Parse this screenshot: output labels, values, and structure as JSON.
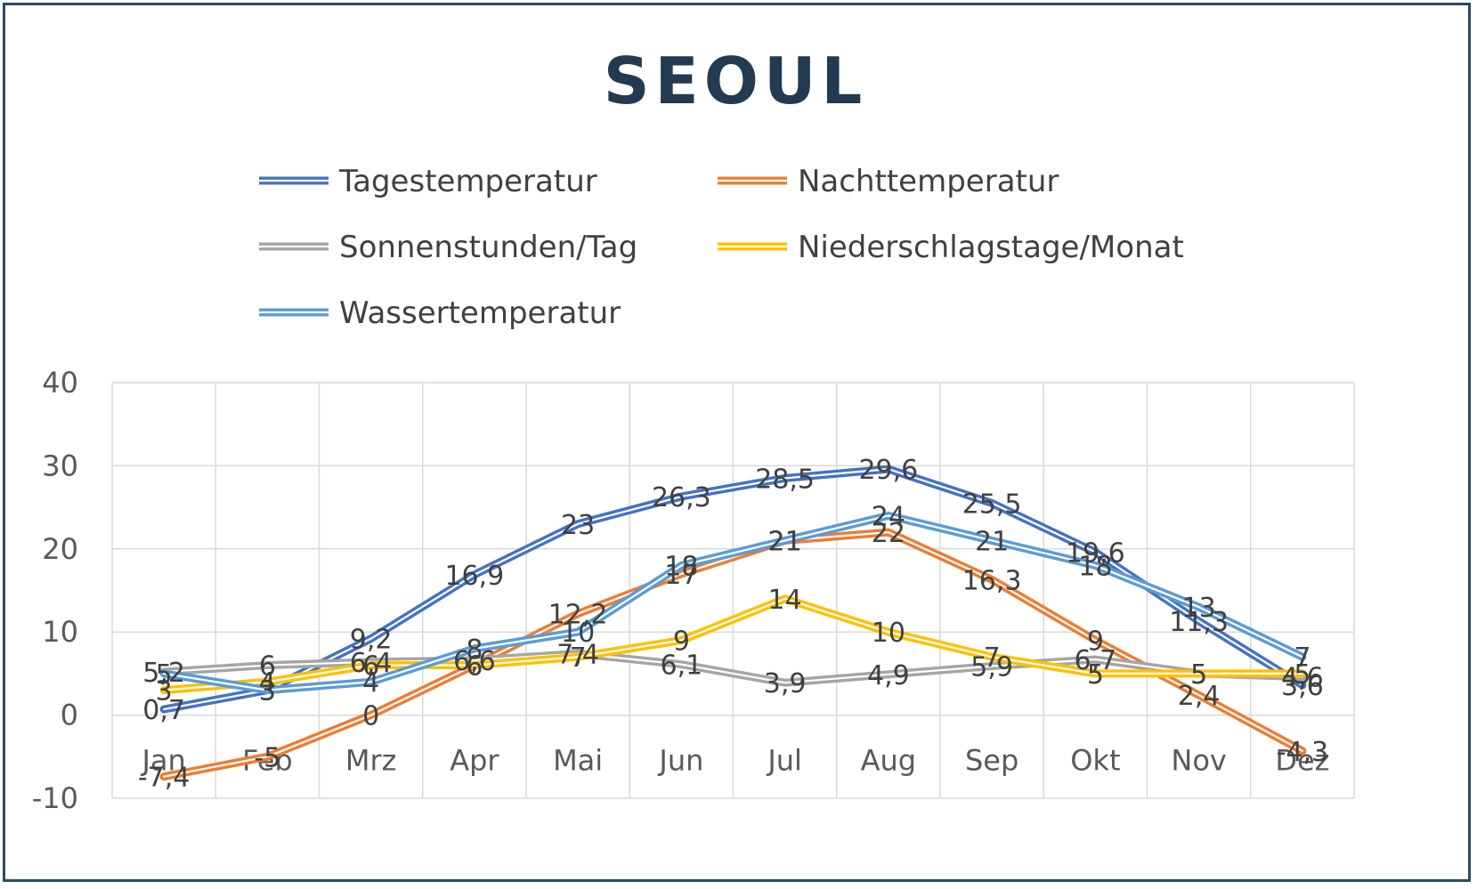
{
  "chart_data": {
    "type": "line",
    "title": "SEOUL",
    "categories": [
      "Jan",
      "Feb",
      "Mrz",
      "Apr",
      "Mai",
      "Jun",
      "Jul",
      "Aug",
      "Sep",
      "Okt",
      "Nov",
      "Dez"
    ],
    "ylim": [
      -10,
      40
    ],
    "yticks": [
      -10,
      0,
      10,
      20,
      30,
      40
    ],
    "grid": true,
    "legend_position": "top",
    "series": [
      {
        "name": "Tagestemperatur",
        "color": "#4472c4",
        "values": [
          0.7,
          3,
          9.2,
          16.9,
          23,
          26.3,
          28.5,
          29.6,
          25.5,
          19.6,
          11.3,
          3.6
        ],
        "labels": [
          "0,7",
          "3",
          "9,2",
          "16,9",
          "23",
          "26,3",
          "28,5",
          "29,6",
          "25,5",
          "19,6",
          "11,3",
          "3,6"
        ]
      },
      {
        "name": "Nachttemperatur",
        "color": "#ed7d31",
        "values": [
          -7.4,
          -5,
          0,
          6,
          12.2,
          17,
          21,
          22,
          16.3,
          9,
          2.4,
          -4.3
        ],
        "labels": [
          "-7,4",
          "-5",
          "0",
          "6",
          "12,2",
          "17",
          "21",
          "22",
          "16,3",
          "9",
          "2,4",
          "-4,3"
        ]
      },
      {
        "name": "Sonnenstunden/Tag",
        "color": "#a5a5a5",
        "values": [
          5.2,
          6,
          6.4,
          6.6,
          7.4,
          6.1,
          3.9,
          4.9,
          5.9,
          6.7,
          5,
          4.6
        ],
        "labels": [
          "5,2",
          "6",
          "6,4",
          "6,6",
          "7,4",
          "6,1",
          "3,9",
          "4,9",
          "5,9",
          "6,7",
          "5",
          "4,6"
        ]
      },
      {
        "name": "Niederschlagstage/Monat",
        "color": "#ffc000",
        "values": [
          3,
          4,
          6,
          6,
          7,
          9,
          14,
          10,
          7,
          5,
          5,
          5
        ],
        "labels": [
          "3",
          "4",
          "6",
          "6",
          "7",
          "9",
          "14",
          "10",
          "7",
          "5",
          "5",
          "5"
        ]
      },
      {
        "name": "Wassertemperatur",
        "color": "#5b9bd5",
        "values": [
          5,
          3,
          4,
          8,
          10,
          18,
          21,
          24,
          21,
          18,
          13,
          7
        ],
        "labels": [
          "5",
          "3",
          "4",
          "8",
          "10",
          "18",
          "21",
          "24",
          "21",
          "18",
          "13",
          "7"
        ]
      }
    ]
  }
}
